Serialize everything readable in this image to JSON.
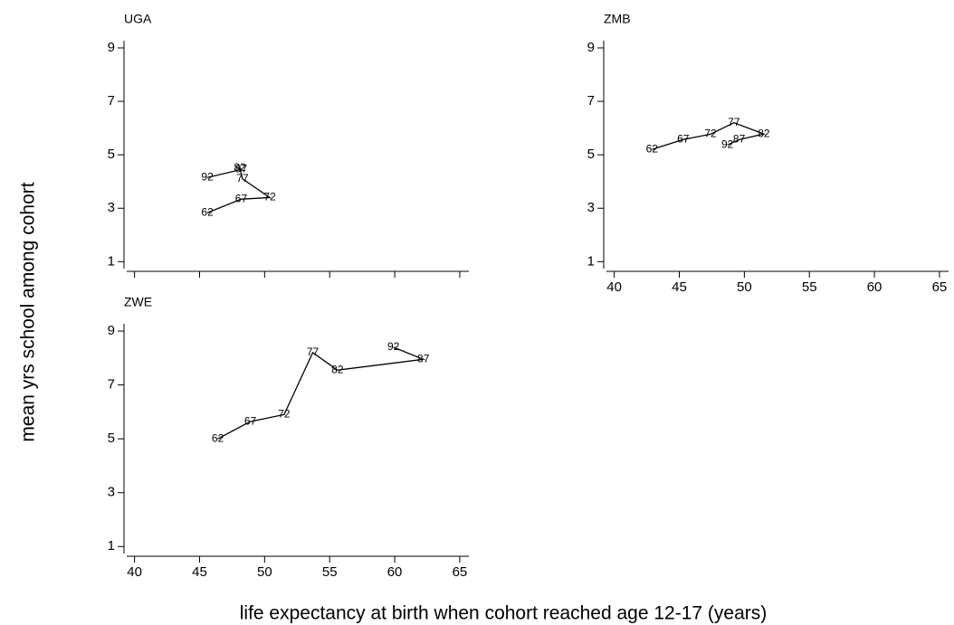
{
  "ylabel": "mean yrs school among cohort",
  "xlabel": "life expectancy at birth when cohort reached age 12-17 (years)",
  "chart_data": [
    {
      "type": "line",
      "title": "UGA",
      "color": "#000000",
      "x": [
        45.6,
        48.2,
        50.4,
        48.3,
        48.1,
        48.2,
        45.6
      ],
      "values": [
        2.83,
        3.34,
        3.4,
        4.1,
        4.5,
        4.45,
        4.15
      ],
      "point_labels": [
        "62",
        "67",
        "72",
        "77",
        "82",
        "87",
        "92"
      ],
      "xlim": [
        39.4,
        65.7
      ],
      "ylim": [
        0.74,
        9.27
      ],
      "xticks": [
        40,
        45,
        50,
        55,
        60,
        65
      ],
      "yticks": [
        1,
        3,
        5,
        7,
        9
      ],
      "show_xtick_labels": false
    },
    {
      "type": "line",
      "title": "ZMB",
      "color": "#000000",
      "x": [
        42.9,
        45.3,
        47.4,
        49.2,
        51.5,
        49.6,
        48.7
      ],
      "values": [
        5.2,
        5.57,
        5.77,
        6.2,
        5.78,
        5.57,
        5.37
      ],
      "point_labels": [
        "62",
        "67",
        "72",
        "77",
        "82",
        "87",
        "92"
      ],
      "xlim": [
        39.4,
        65.7
      ],
      "ylim": [
        0.74,
        9.27
      ],
      "xticks": [
        40,
        45,
        50,
        55,
        60,
        65
      ],
      "yticks": [
        1,
        3,
        5,
        7,
        9
      ],
      "show_xtick_labels": true
    },
    {
      "type": "line",
      "title": "ZWE",
      "color": "#000000",
      "x": [
        46.4,
        48.9,
        51.5,
        53.7,
        55.6,
        62.2,
        59.9
      ],
      "values": [
        5.0,
        5.64,
        5.9,
        8.2,
        7.55,
        7.95,
        8.4
      ],
      "point_labels": [
        "62",
        "67",
        "72",
        "77",
        "82",
        "87",
        "92"
      ],
      "xlim": [
        39.4,
        65.7
      ],
      "ylim": [
        0.74,
        9.27
      ],
      "xticks": [
        40,
        45,
        50,
        55,
        60,
        65
      ],
      "yticks": [
        1,
        3,
        5,
        7,
        9
      ],
      "show_xtick_labels": true
    }
  ]
}
